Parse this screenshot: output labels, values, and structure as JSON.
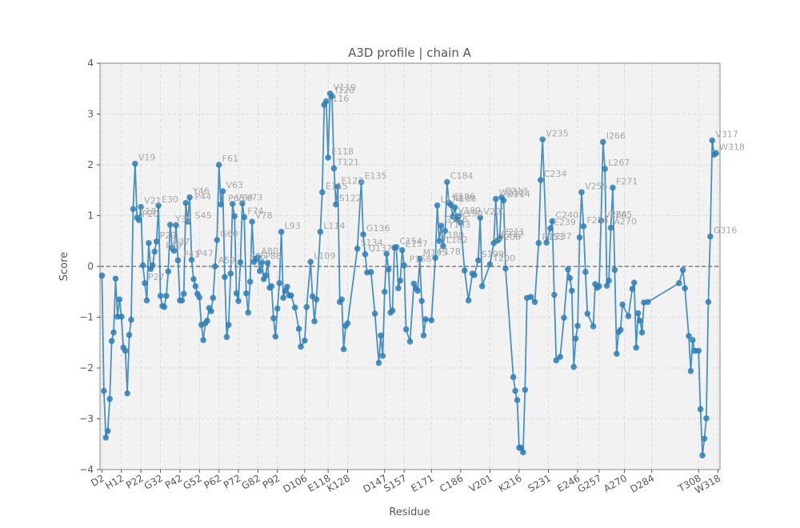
{
  "chart_data": {
    "type": "line",
    "title": "A3D profile | chain A",
    "xlabel": "Residue",
    "ylabel": "Score",
    "ylim": [
      -4,
      4
    ],
    "yticks": [
      -4,
      -3,
      -2,
      -1,
      0,
      1,
      2,
      3,
      4
    ],
    "xrange": [
      1,
      319
    ],
    "xticks": [
      {
        "x": 2,
        "label": "D2"
      },
      {
        "x": 12,
        "label": "H12"
      },
      {
        "x": 22,
        "label": "P22"
      },
      {
        "x": 32,
        "label": "G32"
      },
      {
        "x": 42,
        "label": "P42"
      },
      {
        "x": 52,
        "label": "G52"
      },
      {
        "x": 62,
        "label": "P62"
      },
      {
        "x": 72,
        "label": "P72"
      },
      {
        "x": 82,
        "label": "G82"
      },
      {
        "x": 92,
        "label": "P92"
      },
      {
        "x": 106,
        "label": "D106"
      },
      {
        "x": 118,
        "label": "E118"
      },
      {
        "x": 128,
        "label": "K128"
      },
      {
        "x": 147,
        "label": "D147"
      },
      {
        "x": 157,
        "label": "S157"
      },
      {
        "x": 171,
        "label": "E171"
      },
      {
        "x": 186,
        "label": "C186"
      },
      {
        "x": 201,
        "label": "V201"
      },
      {
        "x": 216,
        "label": "K216"
      },
      {
        "x": 231,
        "label": "S231"
      },
      {
        "x": 246,
        "label": "E246"
      },
      {
        "x": 257,
        "label": "G257"
      },
      {
        "x": 270,
        "label": "A270"
      },
      {
        "x": 284,
        "label": "D284"
      },
      {
        "x": 308,
        "label": "T308"
      },
      {
        "x": 318,
        "label": "W318"
      }
    ],
    "grid": true,
    "reference_line": 0,
    "color": "#2f7fb4",
    "points": [
      [
        2,
        -0.18
      ],
      [
        3,
        -2.45
      ],
      [
        4,
        -3.37
      ],
      [
        5,
        -3.24
      ],
      [
        6,
        -2.61
      ],
      [
        7,
        -1.47
      ],
      [
        8,
        -1.3
      ],
      [
        9,
        -0.24
      ],
      [
        10,
        -0.99
      ],
      [
        11,
        -0.65
      ],
      [
        12,
        -0.99
      ],
      [
        13,
        -1.6
      ],
      [
        14,
        -1.66
      ],
      [
        15,
        -2.5
      ],
      [
        16,
        -1.35
      ],
      [
        17,
        -1.05
      ],
      [
        18,
        1.13
      ],
      [
        19,
        2.02
      ],
      [
        20,
        0.96
      ],
      [
        21,
        0.91
      ],
      [
        22,
        1.17
      ],
      [
        23,
        0.02
      ],
      [
        24,
        -0.33
      ],
      [
        25,
        -0.67
      ],
      [
        26,
        0.46
      ],
      [
        27,
        -0.05
      ],
      [
        28,
        0.02
      ],
      [
        29,
        0.29
      ],
      [
        30,
        0.49
      ],
      [
        31,
        1.2
      ],
      [
        32,
        -0.58
      ],
      [
        33,
        -0.78
      ],
      [
        34,
        -0.8
      ],
      [
        35,
        -0.58
      ],
      [
        36,
        -0.1
      ],
      [
        37,
        0.82
      ],
      [
        38,
        0.36
      ],
      [
        39,
        0.31
      ],
      [
        40,
        0.81
      ],
      [
        41,
        0.12
      ],
      [
        42,
        -0.67
      ],
      [
        43,
        -0.67
      ],
      [
        44,
        -0.54
      ],
      [
        45,
        1.25
      ],
      [
        46,
        0.88
      ],
      [
        47,
        1.36
      ],
      [
        48,
        0.13
      ],
      [
        49,
        -0.25
      ],
      [
        50,
        -0.39
      ],
      [
        51,
        -0.54
      ],
      [
        52,
        -0.61
      ],
      [
        53,
        -1.15
      ],
      [
        54,
        -1.45
      ],
      [
        55,
        -1.12
      ],
      [
        56,
        -1.07
      ],
      [
        57,
        -0.82
      ],
      [
        58,
        -0.88
      ],
      [
        59,
        -0.62
      ],
      [
        60,
        0.0
      ],
      [
        61,
        0.52
      ],
      [
        62,
        2.0
      ],
      [
        63,
        1.22
      ],
      [
        64,
        1.48
      ],
      [
        65,
        -0.21
      ],
      [
        66,
        -1.39
      ],
      [
        67,
        -1.15
      ],
      [
        68,
        -0.14
      ],
      [
        69,
        1.23
      ],
      [
        70,
        0.99
      ],
      [
        71,
        -0.53
      ],
      [
        72,
        -0.68
      ],
      [
        73,
        0.08
      ],
      [
        74,
        1.24
      ],
      [
        75,
        0.97
      ],
      [
        76,
        -0.53
      ],
      [
        77,
        -0.91
      ],
      [
        78,
        -0.3
      ],
      [
        79,
        0.88
      ],
      [
        80,
        0.09
      ],
      [
        81,
        0.15
      ],
      [
        82,
        0.18
      ],
      [
        83,
        -0.09
      ],
      [
        84,
        0.08
      ],
      [
        85,
        -0.25
      ],
      [
        86,
        -0.18
      ],
      [
        87,
        0.07
      ],
      [
        88,
        -0.42
      ],
      [
        89,
        -0.39
      ],
      [
        90,
        -1.02
      ],
      [
        91,
        -1.38
      ],
      [
        92,
        -0.83
      ],
      [
        93,
        -0.33
      ],
      [
        94,
        0.68
      ],
      [
        95,
        -0.62
      ],
      [
        96,
        -0.48
      ],
      [
        97,
        -0.4
      ],
      [
        98,
        -0.57
      ],
      [
        99,
        -0.57
      ],
      [
        101,
        -0.81
      ],
      [
        103,
        -1.23
      ],
      [
        104,
        -1.58
      ],
      [
        106,
        -1.46
      ],
      [
        107,
        -0.8
      ],
      [
        109,
        0.09
      ],
      [
        110,
        -0.59
      ],
      [
        111,
        -1.08
      ],
      [
        112,
        -0.65
      ],
      [
        114,
        0.68
      ],
      [
        115,
        1.46
      ],
      [
        116,
        3.18
      ],
      [
        117,
        3.25
      ],
      [
        118,
        2.14
      ],
      [
        119,
        3.4
      ],
      [
        120,
        3.35
      ],
      [
        121,
        1.93
      ],
      [
        122,
        1.22
      ],
      [
        123,
        1.57
      ],
      [
        124,
        -0.7
      ],
      [
        125,
        -0.65
      ],
      [
        126,
        -1.63
      ],
      [
        127,
        -1.17
      ],
      [
        128,
        -1.12
      ],
      [
        133,
        0.35
      ],
      [
        135,
        1.66
      ],
      [
        136,
        0.63
      ],
      [
        137,
        0.24
      ],
      [
        138,
        -0.12
      ],
      [
        140,
        -0.11
      ],
      [
        142,
        -0.93
      ],
      [
        144,
        -1.9
      ],
      [
        145,
        -1.36
      ],
      [
        146,
        -1.76
      ],
      [
        147,
        -0.5
      ],
      [
        148,
        0.25
      ],
      [
        149,
        -0.06
      ],
      [
        150,
        -0.91
      ],
      [
        151,
        -0.87
      ],
      [
        152,
        0.37
      ],
      [
        153,
        0.38
      ],
      [
        154,
        -0.43
      ],
      [
        155,
        -0.28
      ],
      [
        156,
        0.32
      ],
      [
        157,
        0.02
      ],
      [
        158,
        -1.24
      ],
      [
        160,
        -1.48
      ],
      [
        162,
        -0.34
      ],
      [
        163,
        -0.43
      ],
      [
        164,
        -0.48
      ],
      [
        165,
        0.15
      ],
      [
        166,
        -0.68
      ],
      [
        167,
        -1.36
      ],
      [
        168,
        -1.04
      ],
      [
        171,
        -1.06
      ],
      [
        173,
        0.17
      ],
      [
        174,
        1.2
      ],
      [
        175,
        0.5
      ],
      [
        176,
        0.8
      ],
      [
        177,
        0.4
      ],
      [
        178,
        0.7
      ],
      [
        179,
        1.66
      ],
      [
        180,
        1.25
      ],
      [
        181,
        1.21
      ],
      [
        182,
        0.98
      ],
      [
        183,
        1.16
      ],
      [
        184,
        0.92
      ],
      [
        185,
        0.99
      ],
      [
        186,
        0.86
      ],
      [
        188,
        -0.08
      ],
      [
        190,
        -0.67
      ],
      [
        192,
        -0.14
      ],
      [
        193,
        -0.17
      ],
      [
        195,
        0.12
      ],
      [
        196,
        0.96
      ],
      [
        197,
        -0.39
      ],
      [
        201,
        0.04
      ],
      [
        203,
        0.46
      ],
      [
        204,
        1.33
      ],
      [
        205,
        0.51
      ],
      [
        206,
        0.56
      ],
      [
        207,
        1.36
      ],
      [
        208,
        1.3
      ],
      [
        209,
        -0.04
      ],
      [
        213,
        -2.18
      ],
      [
        214,
        -2.45
      ],
      [
        215,
        -2.63
      ],
      [
        216,
        -3.57
      ],
      [
        217,
        -3.57
      ],
      [
        218,
        -3.66
      ],
      [
        219,
        -2.43
      ],
      [
        220,
        -0.62
      ],
      [
        222,
        -0.6
      ],
      [
        224,
        -0.7
      ],
      [
        226,
        0.46
      ],
      [
        227,
        1.7
      ],
      [
        228,
        2.5
      ],
      [
        230,
        0.47
      ],
      [
        232,
        0.75
      ],
      [
        233,
        0.89
      ],
      [
        234,
        -0.56
      ],
      [
        235,
        -1.85
      ],
      [
        237,
        -1.78
      ],
      [
        239,
        -1.01
      ],
      [
        241,
        -0.06
      ],
      [
        242,
        -0.23
      ],
      [
        243,
        -0.48
      ],
      [
        244,
        -1.98
      ],
      [
        245,
        -1.42
      ],
      [
        246,
        -1.17
      ],
      [
        247,
        0.57
      ],
      [
        248,
        1.46
      ],
      [
        249,
        0.79
      ],
      [
        250,
        -0.11
      ],
      [
        251,
        -0.93
      ],
      [
        254,
        -1.18
      ],
      [
        255,
        -0.35
      ],
      [
        256,
        -0.42
      ],
      [
        257,
        -0.39
      ],
      [
        258,
        0.9
      ],
      [
        259,
        2.45
      ],
      [
        260,
        1.92
      ],
      [
        261,
        -0.38
      ],
      [
        262,
        -0.28
      ],
      [
        263,
        0.76
      ],
      [
        264,
        1.55
      ],
      [
        265,
        -0.07
      ],
      [
        266,
        -1.72
      ],
      [
        267,
        -1.29
      ],
      [
        268,
        -1.25
      ],
      [
        269,
        -0.75
      ],
      [
        272,
        -0.98
      ],
      [
        274,
        -0.44
      ],
      [
        275,
        -0.32
      ],
      [
        276,
        -1.6
      ],
      [
        277,
        -0.92
      ],
      [
        278,
        -1.07
      ],
      [
        279,
        -1.3
      ],
      [
        280,
        -0.71
      ],
      [
        282,
        -0.7
      ],
      [
        298,
        -0.33
      ],
      [
        300,
        -0.07
      ],
      [
        301,
        -0.43
      ],
      [
        303,
        -1.37
      ],
      [
        304,
        -2.06
      ],
      [
        305,
        -1.45
      ],
      [
        306,
        -1.66
      ],
      [
        308,
        -1.66
      ],
      [
        309,
        -2.81
      ],
      [
        310,
        -3.72
      ],
      [
        311,
        -3.39
      ],
      [
        312,
        -2.99
      ],
      [
        313,
        -0.7
      ],
      [
        314,
        0.59
      ],
      [
        315,
        2.48
      ],
      [
        316,
        2.2
      ],
      [
        317,
        2.23
      ]
    ],
    "point_labels": [
      {
        "x": 19,
        "y": 2.02,
        "label": "V19"
      },
      {
        "x": 22,
        "y": 1.17,
        "label": "V21"
      },
      {
        "x": 20,
        "y": 0.96,
        "label": "L18"
      },
      {
        "x": 21,
        "y": 0.91,
        "label": "P20"
      },
      {
        "x": 31,
        "y": 1.2,
        "label": "E30"
      },
      {
        "x": 24,
        "y": -0.33,
        "label": "P27"
      },
      {
        "x": 30,
        "y": 0.49,
        "label": "P29"
      },
      {
        "x": 33,
        "y": 0.29,
        "label": "P29"
      },
      {
        "x": 38,
        "y": 0.81,
        "label": "Y38"
      },
      {
        "x": 37,
        "y": 0.36,
        "label": "P37"
      },
      {
        "x": 42,
        "y": 0.12,
        "label": "P41"
      },
      {
        "x": 47,
        "y": 1.36,
        "label": "Y46"
      },
      {
        "x": 48,
        "y": 1.25,
        "label": "P44"
      },
      {
        "x": 48,
        "y": 0.88,
        "label": "S45"
      },
      {
        "x": 49,
        "y": 0.13,
        "label": "P47"
      },
      {
        "x": 60,
        "y": 0.0,
        "label": "A59"
      },
      {
        "x": 62,
        "y": 2.0,
        "label": "F61"
      },
      {
        "x": 61,
        "y": 0.52,
        "label": "G60"
      },
      {
        "x": 64,
        "y": 1.48,
        "label": "V63"
      },
      {
        "x": 65,
        "y": 1.22,
        "label": "P65"
      },
      {
        "x": 74,
        "y": 1.24,
        "label": "V73"
      },
      {
        "x": 75,
        "y": 0.97,
        "label": "F74"
      },
      {
        "x": 69,
        "y": 1.23,
        "label": "V69"
      },
      {
        "x": 79,
        "y": 0.88,
        "label": "V78"
      },
      {
        "x": 76,
        "y": 0.08,
        "label": "P76"
      },
      {
        "x": 82,
        "y": 0.18,
        "label": "A80"
      },
      {
        "x": 84,
        "y": 0.08,
        "label": "P86"
      },
      {
        "x": 94,
        "y": 0.68,
        "label": "L93"
      },
      {
        "x": 109,
        "y": 0.09,
        "label": "L109"
      },
      {
        "x": 114,
        "y": 0.68,
        "label": "L114"
      },
      {
        "x": 115,
        "y": 1.46,
        "label": "E115"
      },
      {
        "x": 116,
        "y": 3.18,
        "label": "L116"
      },
      {
        "x": 118,
        "y": 2.14,
        "label": "E118"
      },
      {
        "x": 119,
        "y": 3.4,
        "label": "V119"
      },
      {
        "x": 120,
        "y": 3.35,
        "label": "I120"
      },
      {
        "x": 121,
        "y": 1.93,
        "label": "T121"
      },
      {
        "x": 123,
        "y": 1.57,
        "label": "E123"
      },
      {
        "x": 122,
        "y": 1.22,
        "label": "S122"
      },
      {
        "x": 135,
        "y": 1.66,
        "label": "E135"
      },
      {
        "x": 136,
        "y": 0.63,
        "label": "G136"
      },
      {
        "x": 137,
        "y": 0.24,
        "label": "Q137"
      },
      {
        "x": 133,
        "y": 0.35,
        "label": "S134"
      },
      {
        "x": 153,
        "y": 0.38,
        "label": "C154"
      },
      {
        "x": 156,
        "y": 0.32,
        "label": "E157"
      },
      {
        "x": 158,
        "y": 0.02,
        "label": "P158"
      },
      {
        "x": 165,
        "y": 0.15,
        "label": "M165"
      },
      {
        "x": 174,
        "y": 1.2,
        "label": "L174"
      },
      {
        "x": 176,
        "y": 0.8,
        "label": "G176"
      },
      {
        "x": 175,
        "y": 0.5,
        "label": "L180"
      },
      {
        "x": 177,
        "y": 0.4,
        "label": "L182"
      },
      {
        "x": 173,
        "y": 0.17,
        "label": "P178"
      },
      {
        "x": 179,
        "y": 1.66,
        "label": "C184"
      },
      {
        "x": 180,
        "y": 1.25,
        "label": "C186"
      },
      {
        "x": 181,
        "y": 1.21,
        "label": "T188"
      },
      {
        "x": 183,
        "y": 0.98,
        "label": "V189"
      },
      {
        "x": 184,
        "y": 0.92,
        "label": "V190"
      },
      {
        "x": 178,
        "y": 0.7,
        "label": "Y183"
      },
      {
        "x": 196,
        "y": 0.96,
        "label": "V201"
      },
      {
        "x": 195,
        "y": 0.12,
        "label": "S199"
      },
      {
        "x": 201,
        "y": 0.04,
        "label": "T200"
      },
      {
        "x": 204,
        "y": 1.33,
        "label": "W212"
      },
      {
        "x": 207,
        "y": 1.36,
        "label": "C213"
      },
      {
        "x": 208,
        "y": 1.3,
        "label": "D214"
      },
      {
        "x": 205,
        "y": 0.51,
        "label": "E212"
      },
      {
        "x": 206,
        "y": 0.56,
        "label": "P211"
      },
      {
        "x": 203,
        "y": 0.46,
        "label": "Q208"
      },
      {
        "x": 228,
        "y": 2.5,
        "label": "V235"
      },
      {
        "x": 227,
        "y": 1.7,
        "label": "C234"
      },
      {
        "x": 233,
        "y": 0.89,
        "label": "C240"
      },
      {
        "x": 232,
        "y": 0.75,
        "label": "E239"
      },
      {
        "x": 230,
        "y": 0.47,
        "label": "P237"
      },
      {
        "x": 226,
        "y": 0.46,
        "label": "P233"
      },
      {
        "x": 248,
        "y": 1.46,
        "label": "V255"
      },
      {
        "x": 249,
        "y": 0.79,
        "label": "F254"
      },
      {
        "x": 258,
        "y": 0.9,
        "label": "V264"
      },
      {
        "x": 259,
        "y": 2.45,
        "label": "I266"
      },
      {
        "x": 260,
        "y": 1.92,
        "label": "L267"
      },
      {
        "x": 264,
        "y": 1.55,
        "label": "F271"
      },
      {
        "x": 261,
        "y": 0.9,
        "label": "P265"
      },
      {
        "x": 263,
        "y": 0.76,
        "label": "A270"
      },
      {
        "x": 315,
        "y": 2.48,
        "label": "V317"
      },
      {
        "x": 317,
        "y": 2.23,
        "label": "W318"
      },
      {
        "x": 314,
        "y": 0.59,
        "label": "G316"
      }
    ]
  }
}
